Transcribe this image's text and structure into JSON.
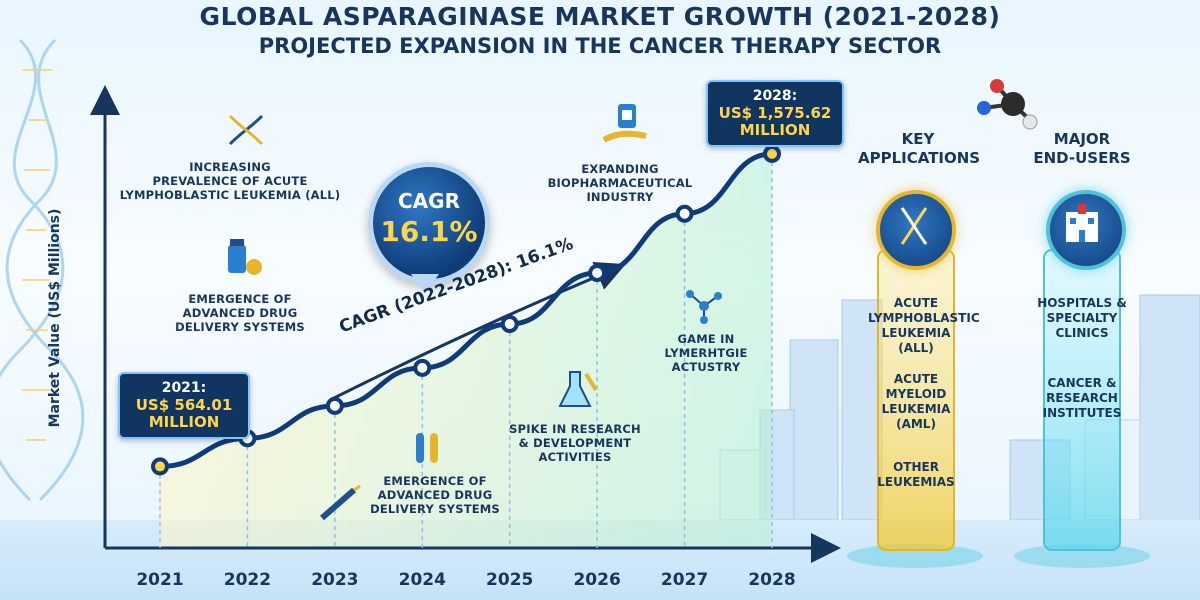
{
  "title": "GLOBAL ASPARAGINASE MARKET GROWTH (2021-2028)",
  "subtitle": "PROJECTED EXPANSION IN THE CANCER THERAPY SECTOR",
  "callouts": {
    "start": {
      "year": "2021:",
      "value": "US$ 564.01",
      "unit": "MILLION"
    },
    "end": {
      "year": "2028:",
      "value": "US$ 1,575.62",
      "unit": "MILLION"
    }
  },
  "cagr_badge": {
    "label": "CAGR",
    "value": "16.1%"
  },
  "cagr_line_label": "CAGR (2022-2028): 16.1%",
  "notes": {
    "n1": [
      "INCREASING",
      "PREVALENCE OF ACUTE",
      "LYMPHOBLASTIC LEUKEMIA (ALL)"
    ],
    "n2": [
      "EMERGENCE OF",
      "ADVANCED DRUG",
      "DELIVERY SYSTEMS"
    ],
    "n3": [
      "EXPANDING",
      "BIOPHARMACEUTICAL",
      "INDUSTRY"
    ],
    "n4": [
      "GAME IN",
      "LYMERHTGIE",
      "ACTUSTRY"
    ],
    "n5": [
      "SPIKE IN RESEARCH",
      "& DEVELOPMENT",
      "ACTIVITIES"
    ],
    "n6": [
      "EMERGENCE OF",
      "ADVANCED DRUG",
      "DELIVERY SYSTEMS"
    ]
  },
  "applications": {
    "heading": [
      "KEY",
      "APPLICATIONS"
    ],
    "items": [
      [
        "ACUTE",
        "LYMPHOBLASTIC",
        "LEUKEMIA (ALL)"
      ],
      [
        "ACUTE",
        "MYELOID",
        "LEUKEMIA",
        "(AML)"
      ],
      [
        "OTHER",
        "LEUKEMIAS"
      ]
    ]
  },
  "end_users": {
    "heading": [
      "MAJOR",
      "END-USERS"
    ],
    "items": [
      [
        "HOSPITALS &",
        "SPECIALTY",
        "CLINICS"
      ],
      [
        "CANCER &",
        "RESEARCH",
        "INSTITUTES"
      ]
    ]
  },
  "colors": {
    "accent": "#1d4f8c",
    "line": "#0f3c78",
    "gold": "#e6b52a",
    "highlight": "#ffd54a"
  },
  "chart_data": {
    "type": "line",
    "title": "GLOBAL ASPARAGINASE MARKET GROWTH (2021-2028)",
    "subtitle": "PROJECTED EXPANSION IN THE CANCER THERAPY SECTOR",
    "xlabel": "",
    "ylabel": "Market Value (US$ Millions)",
    "categories": [
      "2021",
      "2022",
      "2023",
      "2024",
      "2025",
      "2026",
      "2027",
      "2028"
    ],
    "series": [
      {
        "values": [
          564.01,
          655,
          760,
          883,
          1025,
          1190,
          1382,
          1575.62
        ]
      }
    ],
    "ylim": [
      300,
      1750
    ],
    "grid": false
  }
}
